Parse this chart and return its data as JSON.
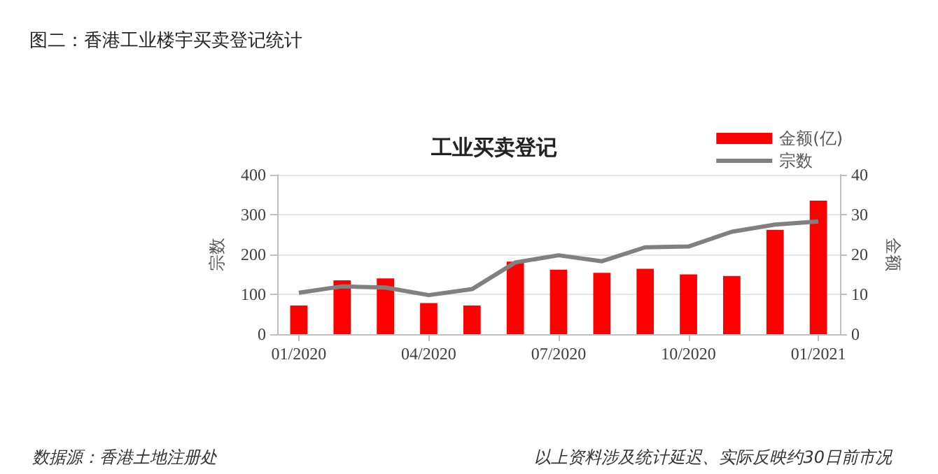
{
  "chart_data": {
    "type": "bar",
    "title": "图二：香港工业楼宇买卖登记统计",
    "subtitle": "工业买卖登记",
    "ylabel": "宗数",
    "y2label": "金额",
    "categories": [
      "01/2020",
      null,
      null,
      "04/2020",
      null,
      null,
      "07/2020",
      null,
      null,
      "10/2020",
      null,
      null,
      "01/2021"
    ],
    "series": [
      {
        "name": "金额(亿)",
        "axis": "y2",
        "color": "#ff0000",
        "values": [
          7.2,
          13.5,
          14.0,
          7.8,
          7.2,
          18.2,
          16.2,
          15.4,
          16.4,
          15.0,
          14.6,
          26.2,
          33.5
        ]
      },
      {
        "name": "宗数",
        "type": "line",
        "color": "#808080",
        "values": [
          104,
          120,
          117,
          98,
          113,
          180,
          198,
          183,
          218,
          220,
          257,
          275,
          283
        ]
      }
    ],
    "ylim": [
      0,
      400
    ],
    "yticks": [
      0,
      100,
      200,
      300,
      400
    ],
    "y2lim": [
      0,
      40
    ],
    "y2ticks": [
      0,
      10,
      20,
      30,
      40
    ],
    "grid": "y",
    "legend": "top right",
    "marker": "none",
    "annotations": [
      "数据源：香港土地注册处",
      "以上资料涉及统计延迟、实际反映约30日前市况"
    ]
  }
}
